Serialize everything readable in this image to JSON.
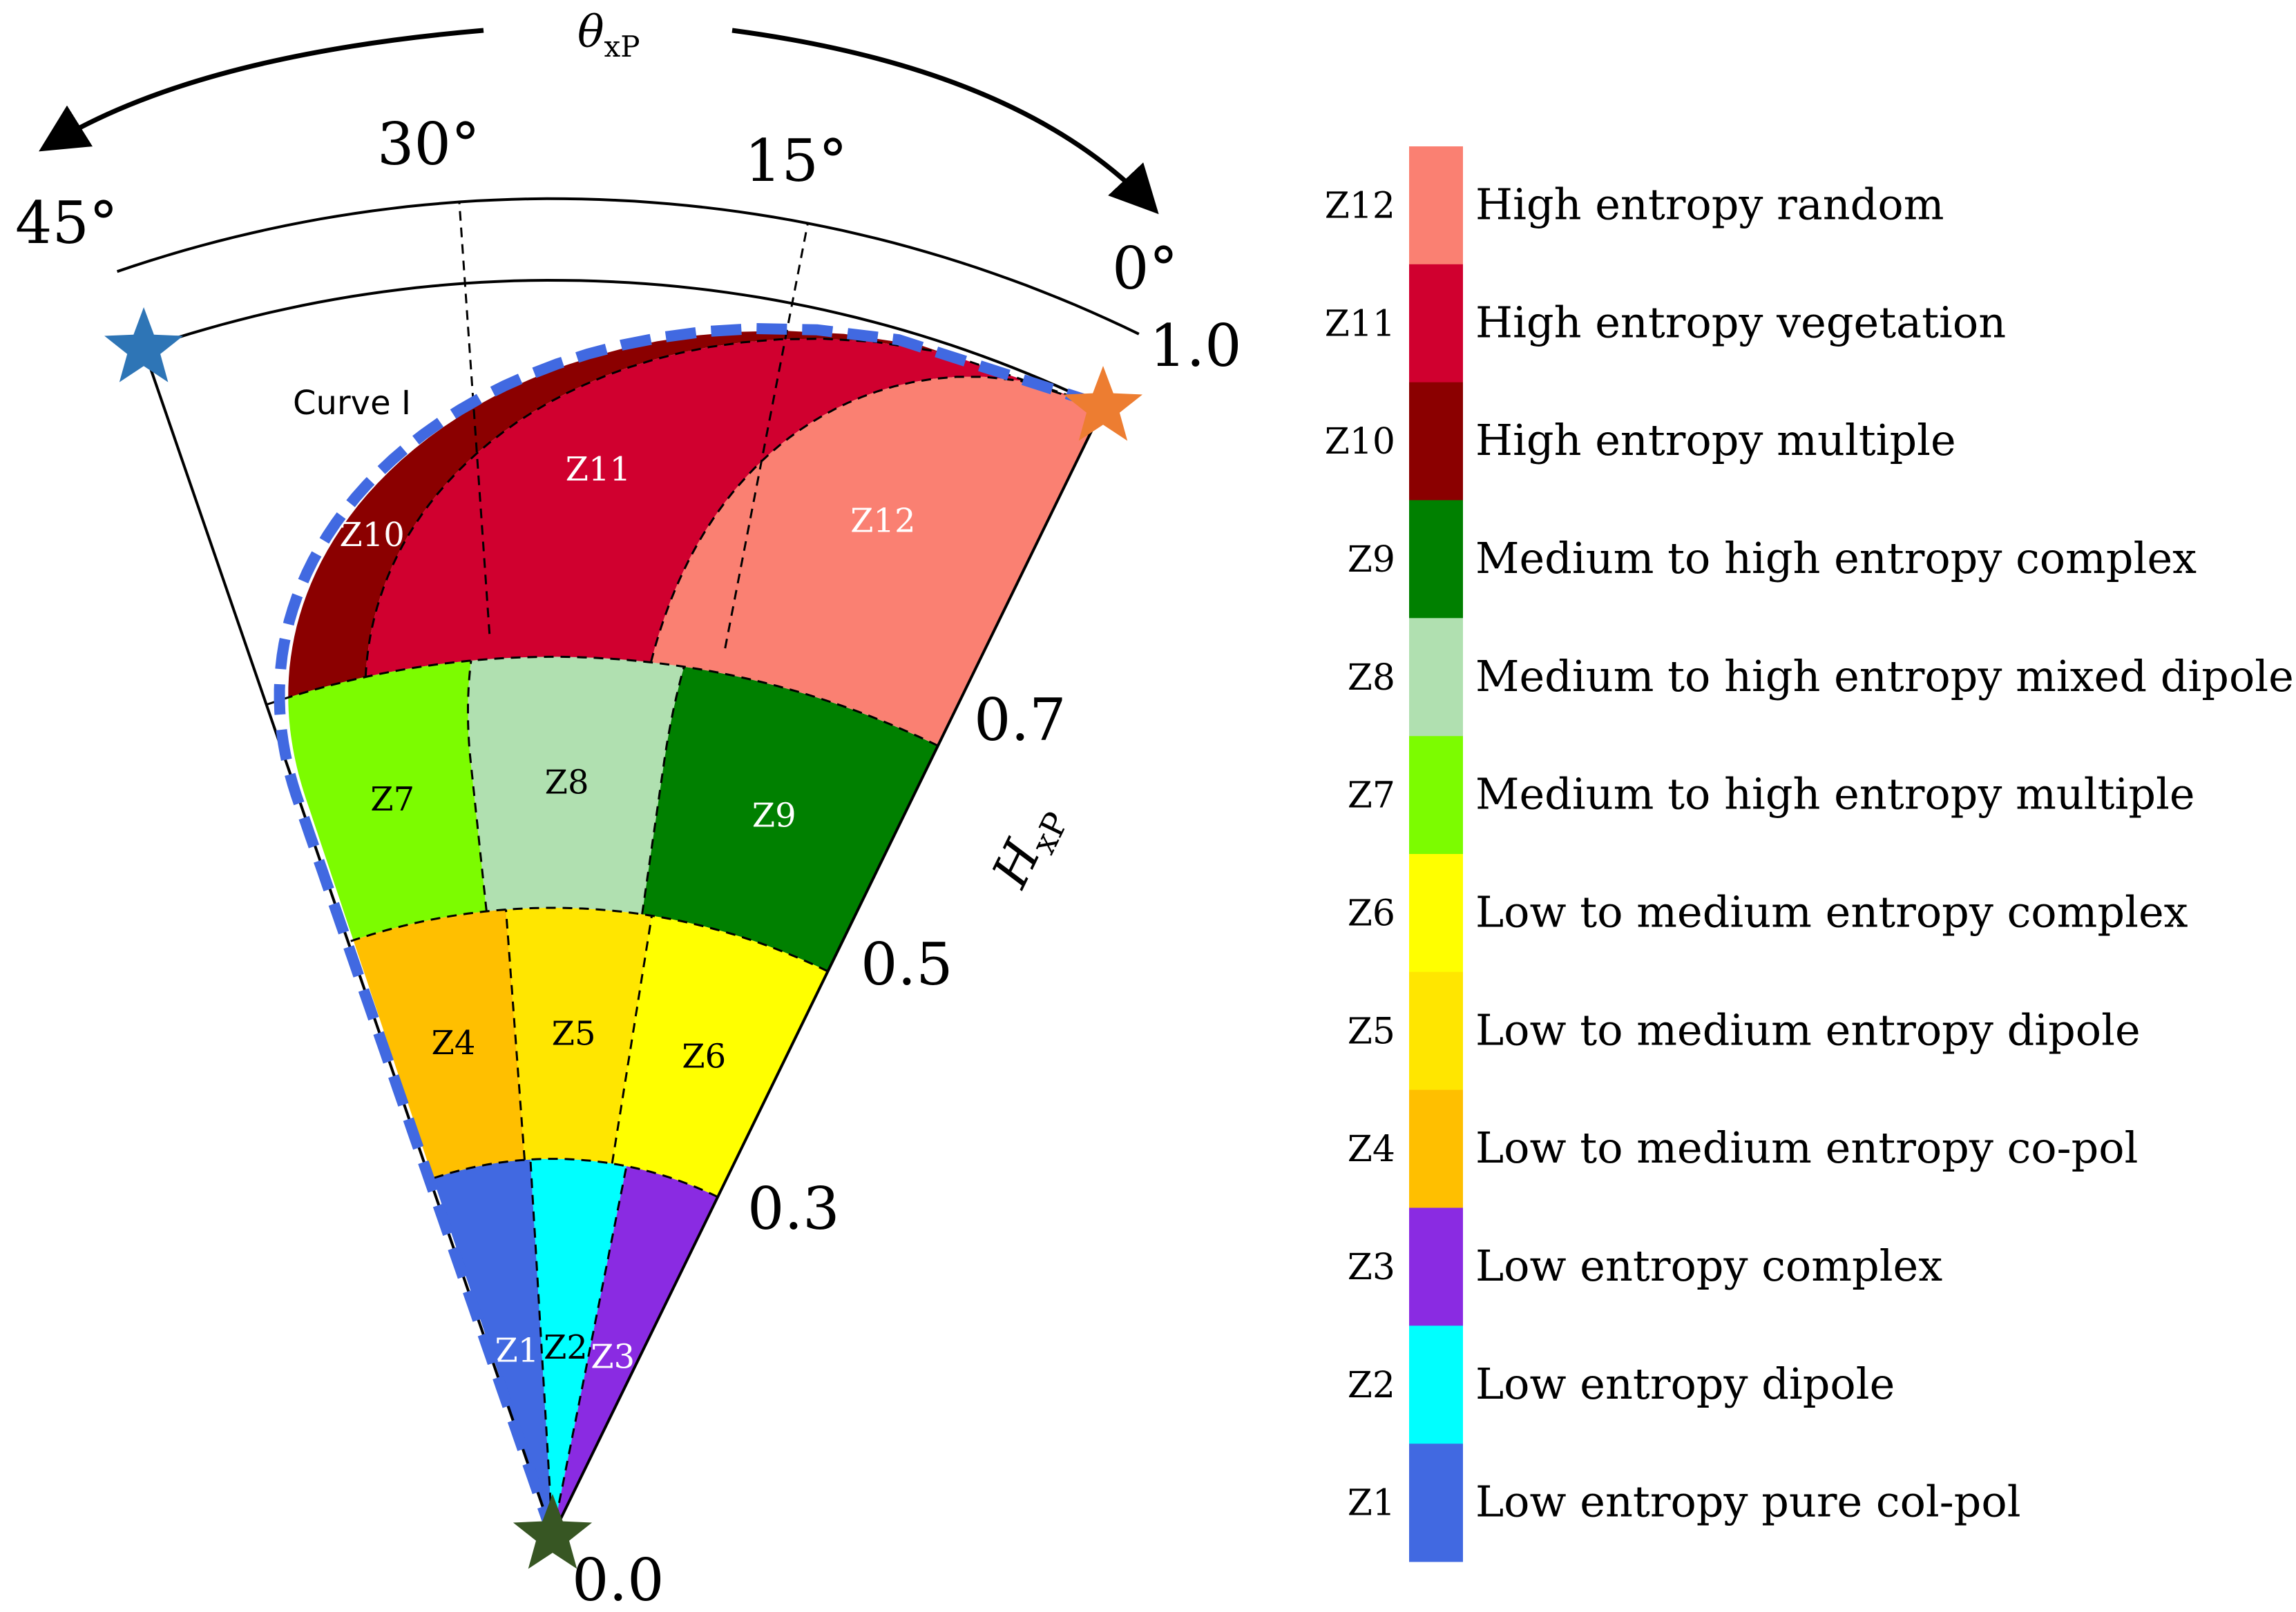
{
  "diagram": {
    "top_axis_label": "θ",
    "top_axis_label_sub": "xP",
    "radial_axis_label": "H",
    "radial_axis_label_sub": "xP",
    "curve_label": "Curve I",
    "angle_ticks": [
      "45°",
      "30°",
      "15°",
      "0°"
    ],
    "radius_ticks": [
      "0.0",
      "0.3",
      "0.5",
      "0.7",
      "1.0"
    ]
  },
  "zones": [
    {
      "code": "Z1",
      "description": "Low entropy pure col-pol",
      "color": "#4169E1",
      "label_color": "#ffffff"
    },
    {
      "code": "Z2",
      "description": "Low entropy dipole",
      "color": "#00FFFF",
      "label_color": "#000000"
    },
    {
      "code": "Z3",
      "description": "Low entropy complex",
      "color": "#8A2BE2",
      "label_color": "#ffffff"
    },
    {
      "code": "Z4",
      "description": "Low to medium  entropy co-pol",
      "color": "#FFBF00",
      "label_color": "#000000"
    },
    {
      "code": "Z5",
      "description": "Low to medium  entropy dipole",
      "color": "#FFE600",
      "label_color": "#000000"
    },
    {
      "code": "Z6",
      "description": "Low to medium  entropy complex",
      "color": "#FFFF00",
      "label_color": "#000000"
    },
    {
      "code": "Z7",
      "description": "Medium to high entropy multiple",
      "color": "#7CFC00",
      "label_color": "#000000"
    },
    {
      "code": "Z8",
      "description": "Medium to high entropy mixed dipole",
      "color": "#B0E0B0",
      "label_color": "#000000"
    },
    {
      "code": "Z9",
      "description": "Medium to high entropy complex",
      "color": "#008000",
      "label_color": "#ffffff"
    },
    {
      "code": "Z10",
      "description": "High entropy multiple",
      "color": "#8B0000",
      "label_color": "#ffffff"
    },
    {
      "code": "Z11",
      "description": "High entropy vegetation",
      "color": "#D0002F",
      "label_color": "#ffffff"
    },
    {
      "code": "Z12",
      "description": "High entropy random",
      "color": "#FA8072",
      "label_color": "#ffffff"
    }
  ],
  "colors": {
    "boundary_curve": "#4169E1",
    "star_45": "#2E75B6",
    "star_0": "#ED7D31",
    "star_origin": "#375623"
  }
}
